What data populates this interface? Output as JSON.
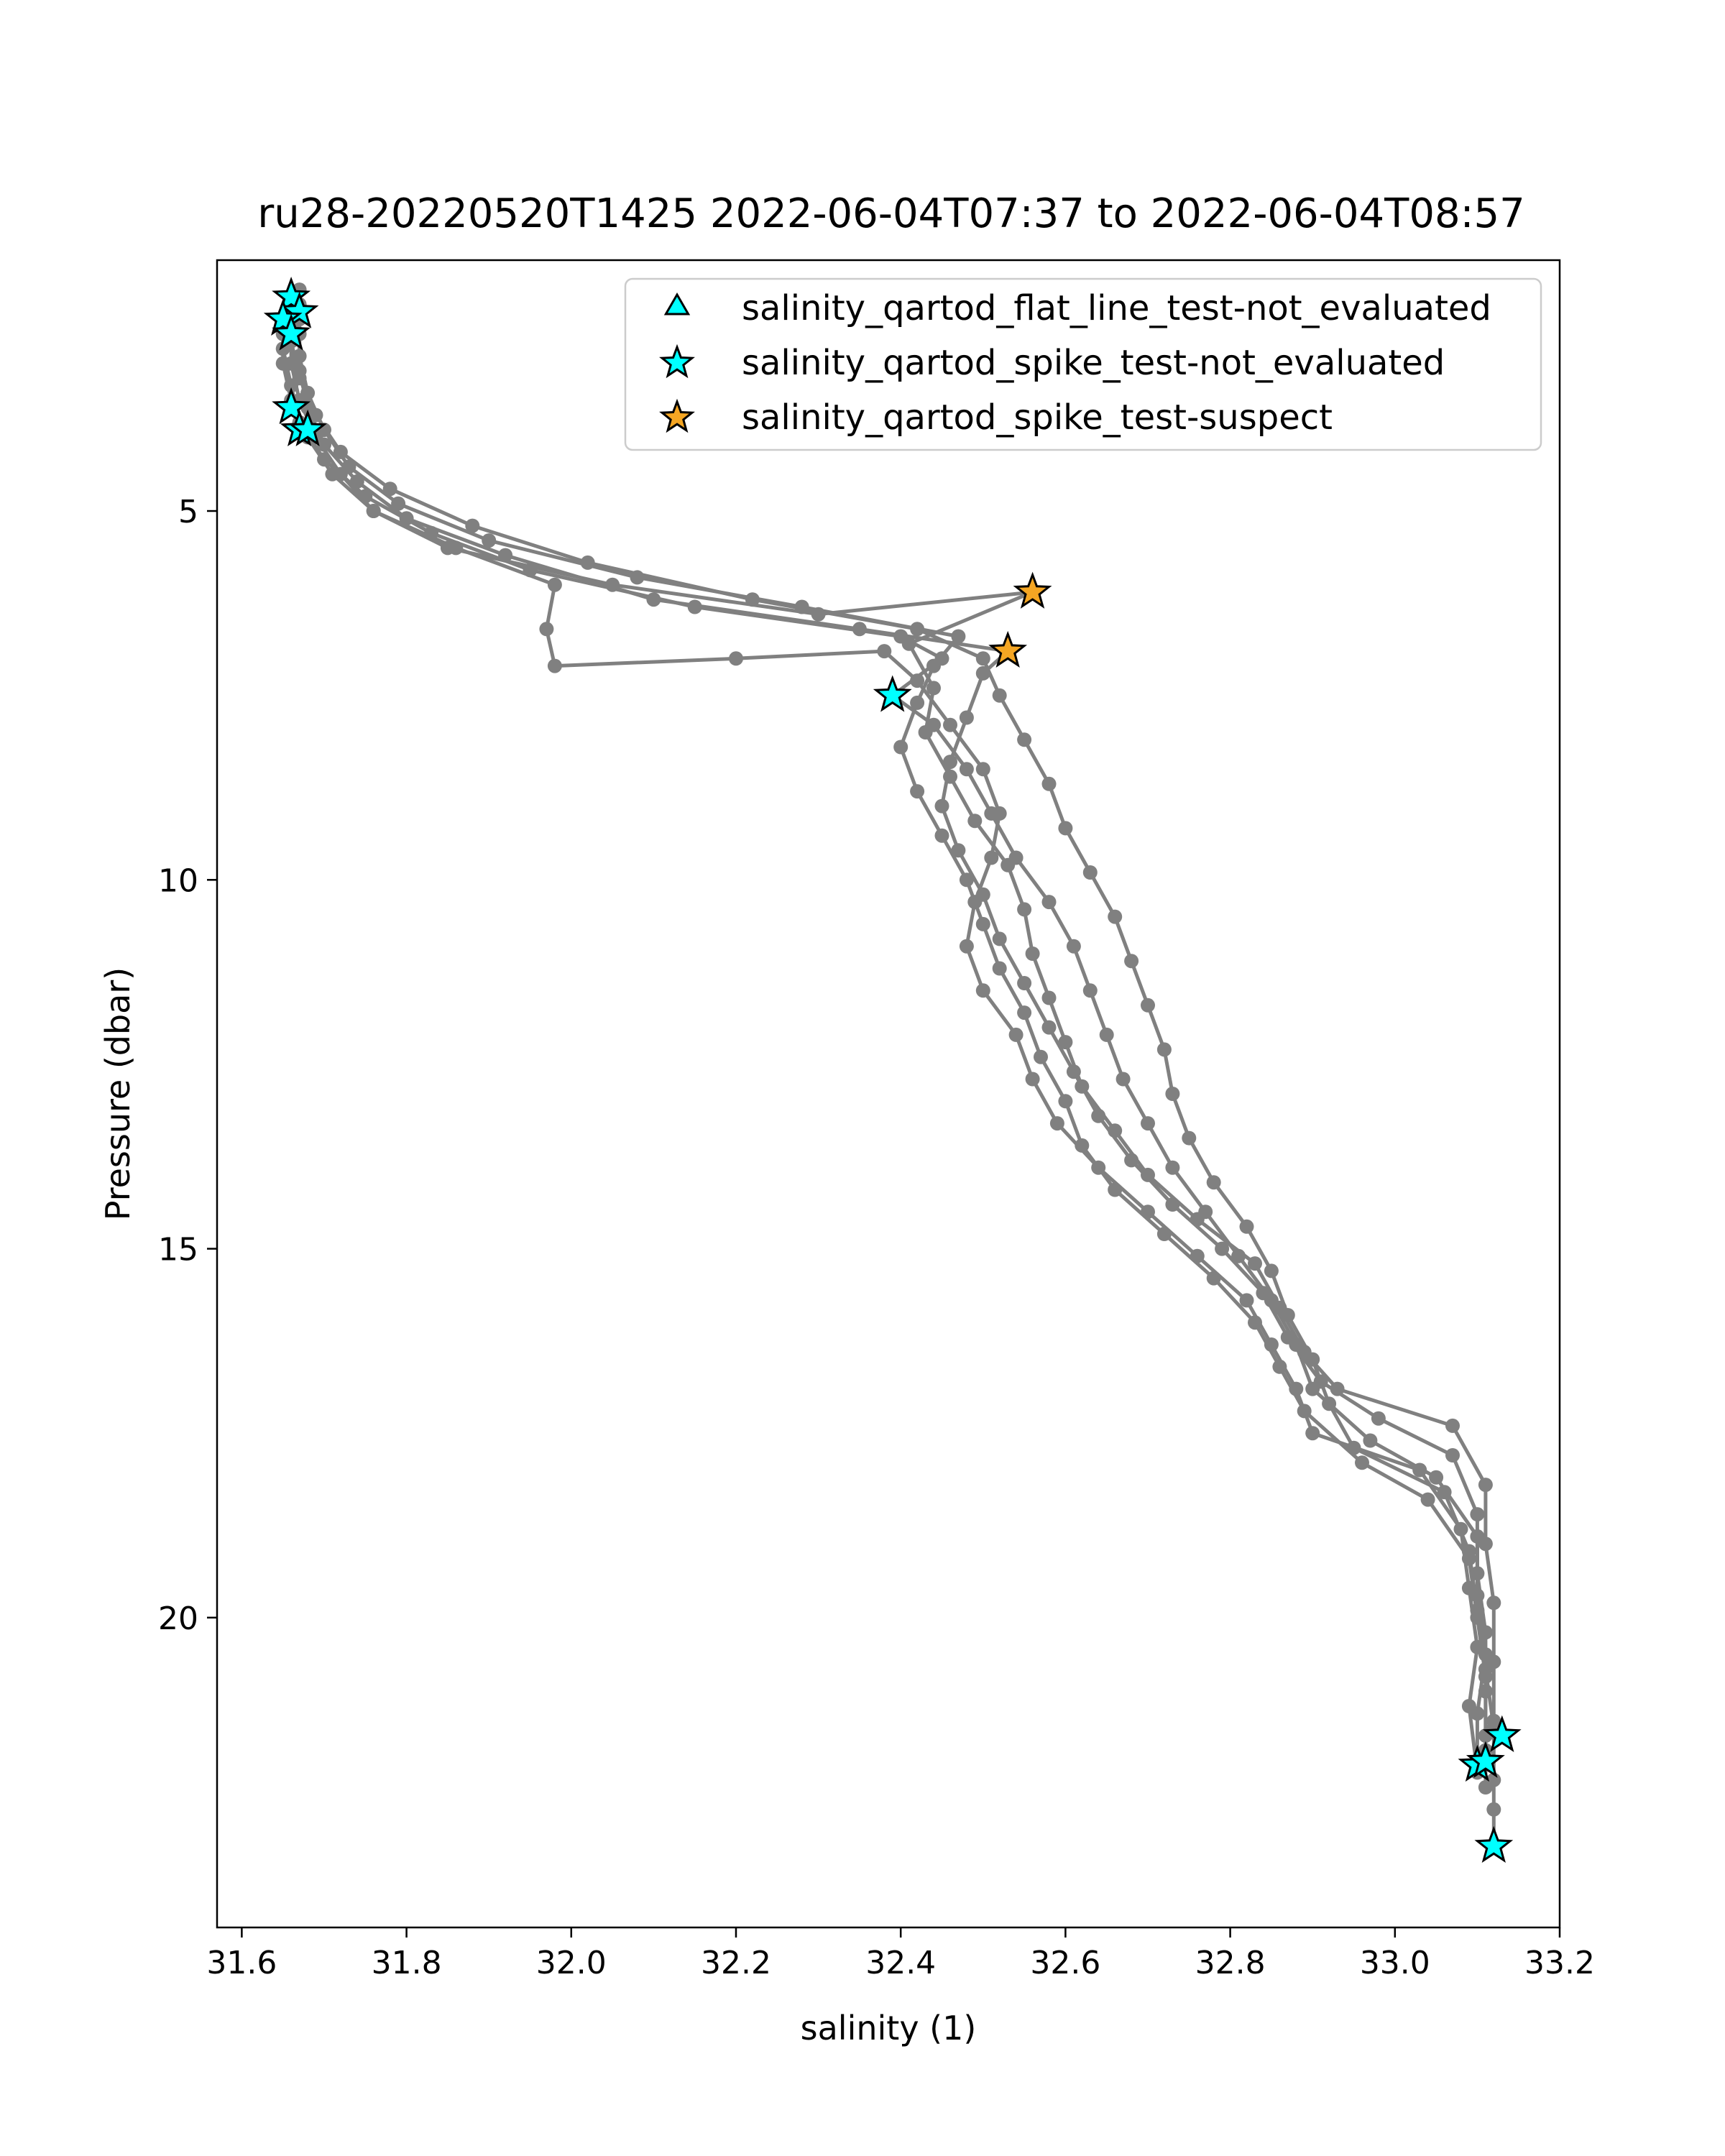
{
  "chart_data": {
    "type": "scatter",
    "title": "ru28-20220520T1425 2022-06-04T07:37 to 2022-06-04T08:57",
    "xlabel": "salinity (1)",
    "ylabel": "Pressure (dbar)",
    "xlim": [
      31.57,
      33.2
    ],
    "ylim": [
      24.2,
      1.6
    ],
    "y_inverted": true,
    "grid": false,
    "x_ticks": [
      {
        "value": 31.6,
        "label": "31.6"
      },
      {
        "value": 31.8,
        "label": "31.8"
      },
      {
        "value": 32.0,
        "label": "32.0"
      },
      {
        "value": 32.2,
        "label": "32.2"
      },
      {
        "value": 32.4,
        "label": "32.4"
      },
      {
        "value": 32.6,
        "label": "32.6"
      },
      {
        "value": 32.8,
        "label": "32.8"
      },
      {
        "value": 33.0,
        "label": "33.0"
      },
      {
        "value": 33.2,
        "label": "33.2"
      }
    ],
    "y_ticks": [
      {
        "value": 5,
        "label": "5"
      },
      {
        "value": 10,
        "label": "10"
      },
      {
        "value": 15,
        "label": "15"
      },
      {
        "value": 20,
        "label": "20"
      }
    ],
    "legend": {
      "placement": "upper-right",
      "entries": [
        {
          "label": "salinity_qartod_flat_line_test-not_evaluated",
          "marker": "triangle",
          "color": "#00FFFF"
        },
        {
          "label": "salinity_qartod_spike_test-not_evaluated",
          "marker": "star",
          "color": "#00FFFF"
        },
        {
          "label": "salinity_qartod_spike_test-suspect",
          "marker": "star",
          "color": "#F5A623"
        }
      ]
    },
    "profile_color": "#808080",
    "series": [
      {
        "values": [
          [
            31.66,
            2.1
          ],
          [
            31.66,
            2.5
          ],
          [
            31.66,
            3.0
          ],
          [
            31.67,
            3.5
          ],
          [
            31.69,
            4.0
          ],
          [
            31.72,
            4.5
          ],
          [
            31.76,
            5.0
          ],
          [
            31.85,
            5.5
          ],
          [
            32.05,
            6.0
          ],
          [
            32.3,
            6.4
          ],
          [
            32.56,
            6.1
          ],
          [
            32.41,
            6.8
          ],
          [
            32.44,
            7.4
          ],
          [
            32.43,
            8.0
          ],
          [
            32.46,
            8.6
          ],
          [
            32.49,
            9.2
          ],
          [
            32.53,
            9.8
          ],
          [
            32.55,
            10.4
          ],
          [
            32.56,
            11.0
          ],
          [
            32.58,
            11.6
          ],
          [
            32.6,
            12.2
          ],
          [
            32.62,
            12.8
          ],
          [
            32.66,
            13.4
          ],
          [
            32.7,
            14.0
          ],
          [
            32.76,
            14.6
          ],
          [
            32.83,
            15.2
          ],
          [
            32.86,
            15.8
          ],
          [
            32.89,
            16.4
          ],
          [
            32.93,
            16.9
          ],
          [
            33.07,
            17.4
          ],
          [
            33.11,
            18.2
          ],
          [
            33.11,
            19.0
          ],
          [
            33.12,
            19.8
          ],
          [
            33.12,
            20.6
          ],
          [
            33.12,
            21.4
          ],
          [
            33.13,
            21.6
          ]
        ]
      },
      {
        "values": [
          [
            31.67,
            2.2
          ],
          [
            31.67,
            2.6
          ],
          [
            31.67,
            3.1
          ],
          [
            31.68,
            3.6
          ],
          [
            31.7,
            4.1
          ],
          [
            31.74,
            4.6
          ],
          [
            31.8,
            5.1
          ],
          [
            31.92,
            5.6
          ],
          [
            32.1,
            6.2
          ],
          [
            32.35,
            6.6
          ],
          [
            32.53,
            6.9
          ],
          [
            32.5,
            7.2
          ],
          [
            32.48,
            7.8
          ],
          [
            32.46,
            8.4
          ],
          [
            32.45,
            9.0
          ],
          [
            32.47,
            9.6
          ],
          [
            32.5,
            10.2
          ],
          [
            32.52,
            10.8
          ],
          [
            32.55,
            11.4
          ],
          [
            32.58,
            12.0
          ],
          [
            32.61,
            12.6
          ],
          [
            32.64,
            13.2
          ],
          [
            32.68,
            13.8
          ],
          [
            32.73,
            14.4
          ],
          [
            32.79,
            15.0
          ],
          [
            32.84,
            15.6
          ],
          [
            32.87,
            16.2
          ],
          [
            32.91,
            16.8
          ],
          [
            32.98,
            17.3
          ],
          [
            33.07,
            17.8
          ],
          [
            33.1,
            18.6
          ],
          [
            33.1,
            19.4
          ],
          [
            33.11,
            20.2
          ],
          [
            33.11,
            21.0
          ],
          [
            33.11,
            21.8
          ]
        ]
      },
      {
        "values": [
          [
            31.65,
            2.4
          ],
          [
            31.65,
            2.8
          ],
          [
            31.66,
            3.3
          ],
          [
            31.67,
            3.8
          ],
          [
            31.7,
            4.3
          ],
          [
            31.75,
            4.8
          ],
          [
            31.83,
            5.3
          ],
          [
            31.95,
            5.8
          ],
          [
            32.15,
            6.3
          ],
          [
            32.4,
            6.7
          ],
          [
            32.45,
            7.0
          ],
          [
            32.39,
            7.5
          ],
          [
            32.44,
            7.9
          ],
          [
            32.48,
            8.5
          ],
          [
            32.51,
            9.1
          ],
          [
            32.54,
            9.7
          ],
          [
            32.58,
            10.3
          ],
          [
            32.61,
            10.9
          ],
          [
            32.63,
            11.5
          ],
          [
            32.65,
            12.1
          ],
          [
            32.67,
            12.7
          ],
          [
            32.7,
            13.3
          ],
          [
            32.73,
            13.9
          ],
          [
            32.77,
            14.5
          ],
          [
            32.81,
            15.1
          ],
          [
            32.85,
            15.7
          ],
          [
            32.88,
            16.3
          ],
          [
            32.9,
            16.9
          ],
          [
            32.97,
            17.6
          ],
          [
            33.05,
            18.1
          ],
          [
            33.1,
            18.9
          ],
          [
            33.1,
            19.7
          ],
          [
            33.11,
            20.5
          ],
          [
            33.1,
            21.3
          ],
          [
            33.1,
            22.0
          ]
        ]
      },
      {
        "values": [
          [
            31.66,
            2.3
          ],
          [
            31.66,
            2.7
          ],
          [
            31.67,
            3.2
          ],
          [
            31.69,
            3.7
          ],
          [
            31.72,
            4.2
          ],
          [
            31.78,
            4.7
          ],
          [
            31.88,
            5.2
          ],
          [
            32.02,
            5.7
          ],
          [
            32.22,
            6.2
          ],
          [
            32.42,
            6.6
          ],
          [
            32.5,
            7.0
          ],
          [
            32.52,
            7.5
          ],
          [
            32.55,
            8.1
          ],
          [
            32.58,
            8.7
          ],
          [
            32.6,
            9.3
          ],
          [
            32.63,
            9.9
          ],
          [
            32.66,
            10.5
          ],
          [
            32.68,
            11.1
          ],
          [
            32.7,
            11.7
          ],
          [
            32.72,
            12.3
          ],
          [
            32.73,
            12.9
          ],
          [
            32.75,
            13.5
          ],
          [
            32.78,
            14.1
          ],
          [
            32.82,
            14.7
          ],
          [
            32.85,
            15.3
          ],
          [
            32.87,
            15.9
          ],
          [
            32.9,
            16.5
          ],
          [
            32.92,
            17.1
          ],
          [
            32.95,
            17.7
          ],
          [
            33.06,
            18.3
          ],
          [
            33.09,
            19.1
          ],
          [
            33.1,
            19.9
          ],
          [
            33.11,
            20.7
          ],
          [
            33.12,
            21.5
          ],
          [
            33.12,
            22.2
          ],
          [
            33.12,
            22.6
          ],
          [
            33.12,
            23.1
          ]
        ]
      },
      {
        "values": [
          [
            31.65,
            2.6
          ],
          [
            31.65,
            3.0
          ],
          [
            31.66,
            3.5
          ],
          [
            31.68,
            4.0
          ],
          [
            31.71,
            4.5
          ],
          [
            31.76,
            5.0
          ],
          [
            31.86,
            5.5
          ],
          [
            31.98,
            6.0
          ],
          [
            31.97,
            6.6
          ],
          [
            31.98,
            7.1
          ],
          [
            32.2,
            7.0
          ],
          [
            32.38,
            6.9
          ],
          [
            32.42,
            7.3
          ],
          [
            32.46,
            7.9
          ],
          [
            32.5,
            8.5
          ],
          [
            32.52,
            9.1
          ],
          [
            32.51,
            9.7
          ],
          [
            32.49,
            10.3
          ],
          [
            32.48,
            10.9
          ],
          [
            32.5,
            11.5
          ],
          [
            32.54,
            12.1
          ],
          [
            32.56,
            12.7
          ],
          [
            32.59,
            13.3
          ],
          [
            32.64,
            13.9
          ],
          [
            32.7,
            14.5
          ],
          [
            32.76,
            15.1
          ],
          [
            32.82,
            15.7
          ],
          [
            32.85,
            16.3
          ],
          [
            32.88,
            16.9
          ],
          [
            32.9,
            17.5
          ],
          [
            33.03,
            18.0
          ],
          [
            33.08,
            18.8
          ],
          [
            33.09,
            19.6
          ],
          [
            33.1,
            20.4
          ],
          [
            33.09,
            21.2
          ],
          [
            33.1,
            22.1
          ]
        ]
      },
      {
        "values": [
          [
            31.67,
            2.0
          ],
          [
            31.67,
            2.4
          ],
          [
            31.67,
            2.9
          ],
          [
            31.68,
            3.4
          ],
          [
            31.7,
            3.9
          ],
          [
            31.73,
            4.4
          ],
          [
            31.79,
            4.9
          ],
          [
            31.9,
            5.4
          ],
          [
            32.08,
            5.9
          ],
          [
            32.28,
            6.3
          ],
          [
            32.47,
            6.7
          ],
          [
            32.44,
            7.1
          ],
          [
            32.42,
            7.6
          ],
          [
            32.4,
            8.2
          ],
          [
            32.42,
            8.8
          ],
          [
            32.45,
            9.4
          ],
          [
            32.48,
            10.0
          ],
          [
            32.5,
            10.6
          ],
          [
            32.52,
            11.2
          ],
          [
            32.55,
            11.8
          ],
          [
            32.57,
            12.4
          ],
          [
            32.6,
            13.0
          ],
          [
            32.62,
            13.6
          ],
          [
            32.66,
            14.2
          ],
          [
            32.72,
            14.8
          ],
          [
            32.78,
            15.4
          ],
          [
            32.83,
            16.0
          ],
          [
            32.86,
            16.6
          ],
          [
            32.89,
            17.2
          ],
          [
            32.96,
            17.9
          ],
          [
            33.04,
            18.4
          ],
          [
            33.09,
            19.2
          ],
          [
            33.1,
            20.0
          ],
          [
            33.11,
            20.8
          ],
          [
            33.11,
            21.6
          ],
          [
            33.11,
            22.3
          ]
        ]
      }
    ],
    "flag_points": [
      {
        "x": 31.66,
        "y": 2.1,
        "marker": "star",
        "flag": "spike-not_evaluated",
        "color": "#00FFFF"
      },
      {
        "x": 31.67,
        "y": 2.3,
        "marker": "star",
        "flag": "spike-not_evaluated",
        "color": "#00FFFF"
      },
      {
        "x": 31.65,
        "y": 2.4,
        "marker": "star",
        "flag": "spike-not_evaluated",
        "color": "#00FFFF"
      },
      {
        "x": 31.66,
        "y": 2.6,
        "marker": "star",
        "flag": "spike-not_evaluated",
        "color": "#00FFFF"
      },
      {
        "x": 31.66,
        "y": 3.6,
        "marker": "star",
        "flag": "spike-not_evaluated",
        "color": "#00FFFF"
      },
      {
        "x": 31.67,
        "y": 3.9,
        "marker": "star",
        "flag": "spike-not_evaluated",
        "color": "#00FFFF"
      },
      {
        "x": 31.68,
        "y": 3.9,
        "marker": "star",
        "flag": "spike-not_evaluated",
        "color": "#00FFFF"
      },
      {
        "x": 32.39,
        "y": 7.5,
        "marker": "star",
        "flag": "spike-not_evaluated",
        "color": "#00FFFF"
      },
      {
        "x": 32.56,
        "y": 6.1,
        "marker": "star",
        "flag": "spike-suspect",
        "color": "#F5A623"
      },
      {
        "x": 32.53,
        "y": 6.9,
        "marker": "star",
        "flag": "spike-suspect",
        "color": "#F5A623"
      },
      {
        "x": 33.13,
        "y": 21.6,
        "marker": "star",
        "flag": "spike-not_evaluated",
        "color": "#00FFFF"
      },
      {
        "x": 33.1,
        "y": 22.0,
        "marker": "star",
        "flag": "spike-not_evaluated",
        "color": "#00FFFF"
      },
      {
        "x": 33.11,
        "y": 21.95,
        "marker": "star",
        "flag": "spike-not_evaluated",
        "color": "#00FFFF"
      },
      {
        "x": 33.12,
        "y": 23.1,
        "marker": "star",
        "flag": "spike-not_evaluated",
        "color": "#00FFFF"
      }
    ]
  }
}
